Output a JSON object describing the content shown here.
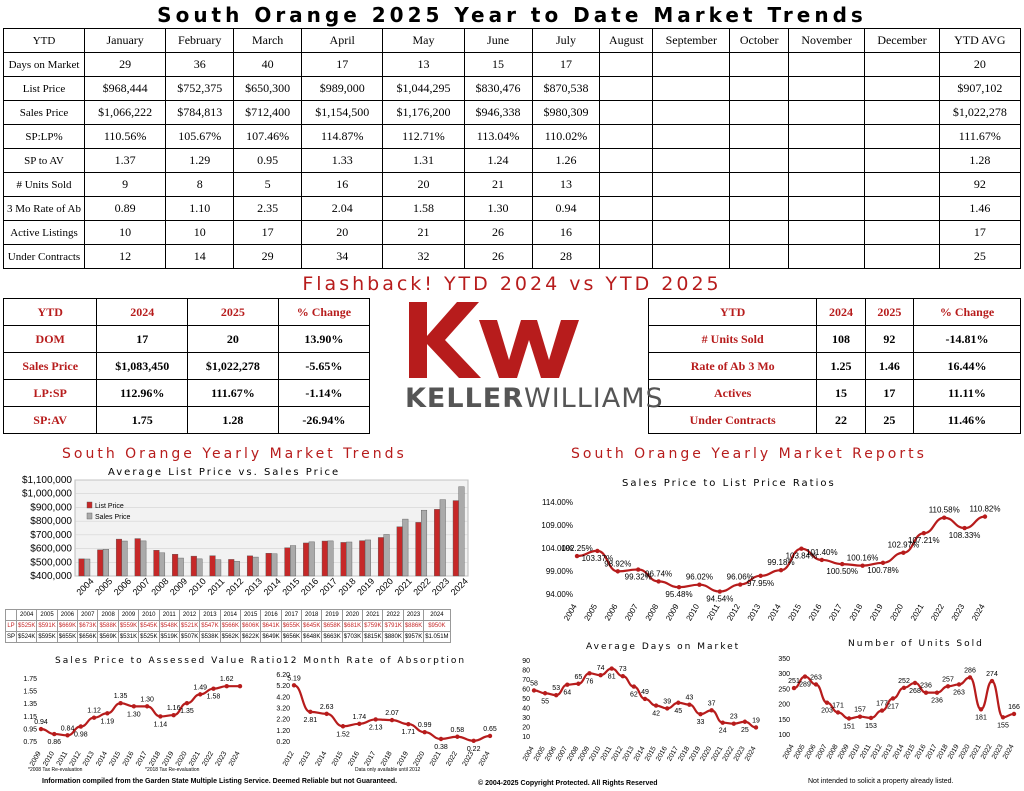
{
  "title": "South Orange 2025 Year to Date Market Trends",
  "main_table": {
    "header": [
      "YTD",
      "January",
      "February",
      "March",
      "April",
      "May",
      "June",
      "July",
      "August",
      "September",
      "October",
      "November",
      "December",
      "YTD AVG"
    ],
    "rows": [
      [
        "Days on Market",
        "29",
        "36",
        "40",
        "17",
        "13",
        "15",
        "17",
        "",
        "",
        "",
        "",
        "",
        "20"
      ],
      [
        "List Price",
        "$968,444",
        "$752,375",
        "$650,300",
        "$989,000",
        "$1,044,295",
        "$830,476",
        "$870,538",
        "",
        "",
        "",
        "",
        "",
        "$907,102"
      ],
      [
        "Sales Price",
        "$1,066,222",
        "$784,813",
        "$712,400",
        "$1,154,500",
        "$1,176,200",
        "$946,338",
        "$980,309",
        "",
        "",
        "",
        "",
        "",
        "$1,022,278"
      ],
      [
        "SP:LP%",
        "110.56%",
        "105.67%",
        "107.46%",
        "114.87%",
        "112.71%",
        "113.04%",
        "110.02%",
        "",
        "",
        "",
        "",
        "",
        "111.67%"
      ],
      [
        "SP to AV",
        "1.37",
        "1.29",
        "0.95",
        "1.33",
        "1.31",
        "1.24",
        "1.26",
        "",
        "",
        "",
        "",
        "",
        "1.28"
      ],
      [
        "# Units Sold",
        "9",
        "8",
        "5",
        "16",
        "20",
        "21",
        "13",
        "",
        "",
        "",
        "",
        "",
        "92"
      ],
      [
        "3 Mo Rate of Ab",
        "0.89",
        "1.10",
        "2.35",
        "2.04",
        "1.58",
        "1.30",
        "0.94",
        "",
        "",
        "",
        "",
        "",
        "1.46"
      ],
      [
        "Active Listings",
        "10",
        "10",
        "17",
        "20",
        "21",
        "26",
        "16",
        "",
        "",
        "",
        "",
        "",
        "17"
      ],
      [
        "Under Contracts",
        "12",
        "14",
        "29",
        "34",
        "32",
        "26",
        "28",
        "",
        "",
        "",
        "",
        "",
        "25"
      ]
    ]
  },
  "flashback_title": "Flashback! YTD 2024 vs YTD 2025",
  "left_compare": {
    "header": [
      "YTD",
      "2024",
      "2025",
      "% Change"
    ],
    "rows": [
      [
        "DOM",
        "17",
        "20",
        "13.90%"
      ],
      [
        "Sales Price",
        "$1,083,450",
        "$1,022,278",
        "-5.65%"
      ],
      [
        "LP:SP",
        "112.96%",
        "111.67%",
        "-1.14%"
      ],
      [
        "SP:AV",
        "1.75",
        "1.28",
        "-26.94%"
      ]
    ]
  },
  "right_compare": {
    "header": [
      "YTD",
      "2024",
      "2025",
      "% Change"
    ],
    "rows": [
      [
        "# Units Sold",
        "108",
        "92",
        "-14.81%"
      ],
      [
        "Rate of Ab 3 Mo",
        "1.25",
        "1.46",
        "16.44%"
      ],
      [
        "Actives",
        "15",
        "17",
        "11.11%"
      ],
      [
        "Under Contracts",
        "22",
        "25",
        "11.46%"
      ]
    ]
  },
  "logo": {
    "mark": "kw",
    "text_bold": "KELLER",
    "text_light": "WILLIAMS",
    "brand_color": "#b71c1c"
  },
  "section_left": "South Orange Yearly Market Trends",
  "section_right": "South Orange Yearly Market Reports",
  "lp_table": {
    "years": [
      "2004",
      "2005",
      "2006",
      "2007",
      "2008",
      "2009",
      "2010",
      "2011",
      "2012",
      "2013",
      "2014",
      "2015",
      "2016",
      "2017",
      "2018",
      "2019",
      "2020",
      "2021",
      "2022",
      "2023",
      "2024"
    ],
    "lp_label": "LP",
    "sp_label": "SP",
    "lp": [
      "$525K",
      "$591K",
      "$669K",
      "$673K",
      "$588K",
      "$559K",
      "$545K",
      "$548K",
      "$521K",
      "$547K",
      "$566K",
      "$606K",
      "$641K",
      "$655K",
      "$645K",
      "$658K",
      "$681K",
      "$759K",
      "$791K",
      "$886K",
      "$950K"
    ],
    "sp": [
      "$524K",
      "$595K",
      "$655K",
      "$656K",
      "$569K",
      "$531K",
      "$525K",
      "$519K",
      "$507K",
      "$538K",
      "$562K",
      "$622K",
      "$649K",
      "$656K",
      "$648K",
      "$663K",
      "$703K",
      "$815K",
      "$880K",
      "$957K",
      "$1.051M"
    ]
  },
  "footer": {
    "left": "Information compiled from the Garden State Multiple Listing Service.  Deemed Reliable but not Guaranteed.",
    "center": "© 2004-2025 Copyright Protected.  All Rights Reserved",
    "right": "Not intended to solicit a property already listed.",
    "note1": "*2008 Tax Re-evaluation",
    "note2": "*2018 Tax Re-evaluation",
    "note3": "Data only available until 2012"
  },
  "chart_data": [
    {
      "type": "bar",
      "title": "Average List Price vs. Sales Price",
      "categories": [
        "2004",
        "2005",
        "2006",
        "2007",
        "2008",
        "2009",
        "2010",
        "2011",
        "2012",
        "2013",
        "2014",
        "2015",
        "2016",
        "2017",
        "2018",
        "2019",
        "2020",
        "2021",
        "2022",
        "2023",
        "2024"
      ],
      "series": [
        {
          "name": "List Price",
          "color": "#c62828",
          "values": [
            525,
            591,
            669,
            673,
            588,
            559,
            545,
            548,
            521,
            547,
            566,
            606,
            641,
            655,
            645,
            658,
            681,
            759,
            791,
            886,
            950
          ]
        },
        {
          "name": "Sales Price",
          "color": "#aaaaaa",
          "values": [
            524,
            595,
            655,
            656,
            569,
            531,
            525,
            519,
            507,
            538,
            562,
            622,
            649,
            656,
            648,
            663,
            703,
            815,
            880,
            957,
            1051
          ]
        }
      ],
      "yticks": [
        "$400,000",
        "$500,000",
        "$600,000",
        "$700,000",
        "$800,000",
        "$900,000",
        "$1,000,000",
        "$1,100,000"
      ],
      "ylim": [
        400,
        1100
      ]
    },
    {
      "type": "line",
      "title": "Sales Price to List Price Ratios",
      "categories": [
        "2004",
        "2005",
        "2006",
        "2007",
        "2008",
        "2009",
        "2010",
        "2011",
        "2012",
        "2013",
        "2014",
        "2015",
        "2016",
        "2017",
        "2018",
        "2019",
        "2020",
        "2021",
        "2022",
        "2023",
        "2024"
      ],
      "values": [
        102.25,
        103.37,
        98.92,
        99.32,
        96.74,
        95.48,
        96.02,
        94.54,
        96.06,
        97.95,
        99.18,
        103.84,
        101.4,
        100.5,
        100.16,
        100.78,
        102.97,
        107.21,
        110.58,
        108.33,
        110.82
      ],
      "labels": [
        "102.25%",
        "103.37%",
        "98.92%",
        "99.32%",
        "96.74%",
        "95.48%",
        "96.02%",
        "94.54%",
        "96.06%",
        "97.95%",
        "99.18%",
        "103.84%",
        "101.40%",
        "100.50%",
        "100.16%",
        "100.78%",
        "102.97%",
        "107.21%",
        "110.58%",
        "108.33%",
        "110.82%"
      ],
      "yticks": [
        "94.00%",
        "99.00%",
        "104.00%",
        "109.00%",
        "114.00%"
      ],
      "ylim": [
        94,
        114
      ]
    },
    {
      "type": "line",
      "title": "Sales Price to Assessed Value Ratio",
      "categories": [
        "2009",
        "2010",
        "2011",
        "2012",
        "2013",
        "2014",
        "2015",
        "2016",
        "2017",
        "2018",
        "2019",
        "2020",
        "2021",
        "2022",
        "2023",
        "2024"
      ],
      "values": [
        0.94,
        0.86,
        0.84,
        0.98,
        1.12,
        1.19,
        1.35,
        1.3,
        1.3,
        1.14,
        1.16,
        1.35,
        1.49,
        1.58,
        1.62,
        1.62
      ],
      "labels": [
        "0.94",
        "0.86",
        "0.84",
        "0.98",
        "1.12",
        "1.19",
        "1.35",
        "1.30",
        "1.30",
        "1.14",
        "1.16",
        "1.35",
        "1.49",
        "1.58",
        "1.62",
        ""
      ],
      "yticks": [
        "0.75",
        "0.95",
        "1.15",
        "1.35",
        "1.55",
        "1.75"
      ],
      "ylim": [
        0.75,
        1.75
      ]
    },
    {
      "type": "line",
      "title": "12 Month Rate of Absorption",
      "categories": [
        "2012",
        "2013",
        "2014",
        "2015",
        "2016",
        "2017",
        "2018",
        "2019",
        "2020",
        "2021",
        "2022",
        "2023",
        "2024"
      ],
      "values": [
        5.19,
        2.81,
        2.63,
        1.52,
        1.74,
        2.13,
        2.07,
        1.71,
        0.99,
        0.38,
        0.58,
        0.22,
        0.65
      ],
      "labels": [
        "5.19",
        "2.81",
        "2.63",
        "1.52",
        "1.74",
        "2.13",
        "2.07",
        "1.71",
        "0.99",
        "0.38",
        "0.58",
        "0.22",
        "0.65"
      ],
      "yticks": [
        "0.20",
        "1.20",
        "2.20",
        "3.20",
        "4.20",
        "5.20",
        "6.20"
      ],
      "ylim": [
        0.2,
        6.2
      ]
    },
    {
      "type": "line",
      "title": "Average Days on Market",
      "categories": [
        "2004",
        "2005",
        "2006",
        "2007",
        "2008",
        "2009",
        "2010",
        "2011",
        "2012",
        "2013",
        "2014",
        "2015",
        "2016",
        "2017",
        "2018",
        "2019",
        "2020",
        "2021",
        "2022",
        "2023",
        "2024"
      ],
      "values": [
        58,
        55,
        53,
        64,
        65,
        76,
        74,
        81,
        73,
        62,
        49,
        42,
        39,
        45,
        43,
        33,
        37,
        24,
        23,
        25,
        19
      ],
      "labels": [
        "58",
        "55",
        "53",
        "64",
        "65",
        "76",
        "74",
        "81",
        "73",
        "62",
        "49",
        "42",
        "39",
        "45",
        "43",
        "33",
        "37",
        "24",
        "23",
        "25",
        "19"
      ],
      "yticks": [
        "10",
        "20",
        "30",
        "40",
        "50",
        "60",
        "70",
        "80",
        "90"
      ],
      "ylim": [
        10,
        90
      ]
    },
    {
      "type": "line",
      "title": "Number of Units Sold",
      "categories": [
        "2004",
        "2005",
        "2006",
        "2007",
        "2008",
        "2009",
        "2010",
        "2011",
        "2012",
        "2013",
        "2014",
        "2015",
        "2016",
        "2017",
        "2018",
        "2019",
        "2020",
        "2021",
        "2022",
        "2023",
        "2024"
      ],
      "values": [
        251,
        289,
        263,
        203,
        171,
        151,
        157,
        153,
        177,
        217,
        252,
        268,
        236,
        236,
        257,
        263,
        286,
        181,
        274,
        155,
        166
      ],
      "labels": [
        "251",
        "289",
        "263",
        "203",
        "171",
        "151",
        "157",
        "153",
        "177",
        "217",
        "252",
        "268",
        "236",
        "236",
        "257",
        "263",
        "286",
        "181",
        "274",
        "155",
        "166"
      ],
      "yticks": [
        "100",
        "150",
        "200",
        "250",
        "300",
        "350"
      ],
      "ylim": [
        100,
        350
      ]
    }
  ]
}
